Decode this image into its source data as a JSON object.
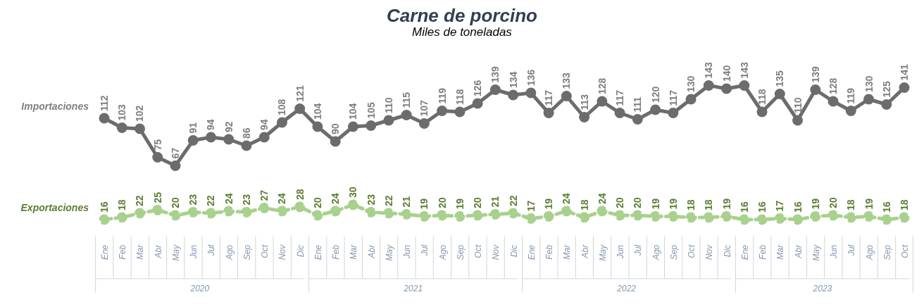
{
  "chart_data": {
    "type": "line",
    "title": "Carne de porcino",
    "subtitle": "Miles de toneladas",
    "categories": [
      "Ene",
      "Feb",
      "Mar",
      "Abr",
      "May",
      "Jun",
      "Jul",
      "Ago",
      "Sep",
      "Oct",
      "Nov",
      "Dic",
      "Ene",
      "Feb",
      "Mar",
      "Abr",
      "May",
      "Jun",
      "Jul",
      "Ago",
      "Sep",
      "Oct",
      "Nov",
      "Dic",
      "Ene",
      "Feb",
      "Mar",
      "Abr",
      "May",
      "Jun",
      "Jul",
      "Ago",
      "Sep",
      "Oct",
      "Nov",
      "Dic",
      "Ene",
      "Feb",
      "Mar",
      "Abr",
      "May",
      "Jun",
      "Jul",
      "Ago",
      "Sep",
      "Oct"
    ],
    "annotations": [
      "2020",
      "2021",
      "2022",
      "2023"
    ],
    "series": [
      {
        "name": "Importaciones",
        "color": "#6d6b6e",
        "line_style": "solid",
        "values": [
          112,
          103,
          102,
          75,
          67,
          91,
          94,
          92,
          86,
          94,
          108,
          121,
          104,
          90,
          104,
          105,
          110,
          115,
          107,
          119,
          118,
          126,
          139,
          134,
          136,
          117,
          133,
          113,
          128,
          117,
          111,
          120,
          117,
          130,
          143,
          140,
          143,
          118,
          135,
          110,
          139,
          128,
          119,
          130,
          125,
          141
        ]
      },
      {
        "name": "Exportaciones",
        "color": "#a9d18e",
        "line_style": "dashed",
        "values": [
          16,
          18,
          22,
          25,
          20,
          23,
          22,
          24,
          23,
          27,
          24,
          28,
          20,
          24,
          30,
          23,
          22,
          21,
          19,
          20,
          19,
          20,
          21,
          22,
          17,
          19,
          24,
          18,
          24,
          20,
          20,
          19,
          19,
          18,
          18,
          19,
          16,
          16,
          17,
          16,
          19,
          20,
          18,
          19,
          16,
          18
        ]
      }
    ],
    "tick_labels": "x",
    "marker": "circle",
    "data_labels": true
  }
}
